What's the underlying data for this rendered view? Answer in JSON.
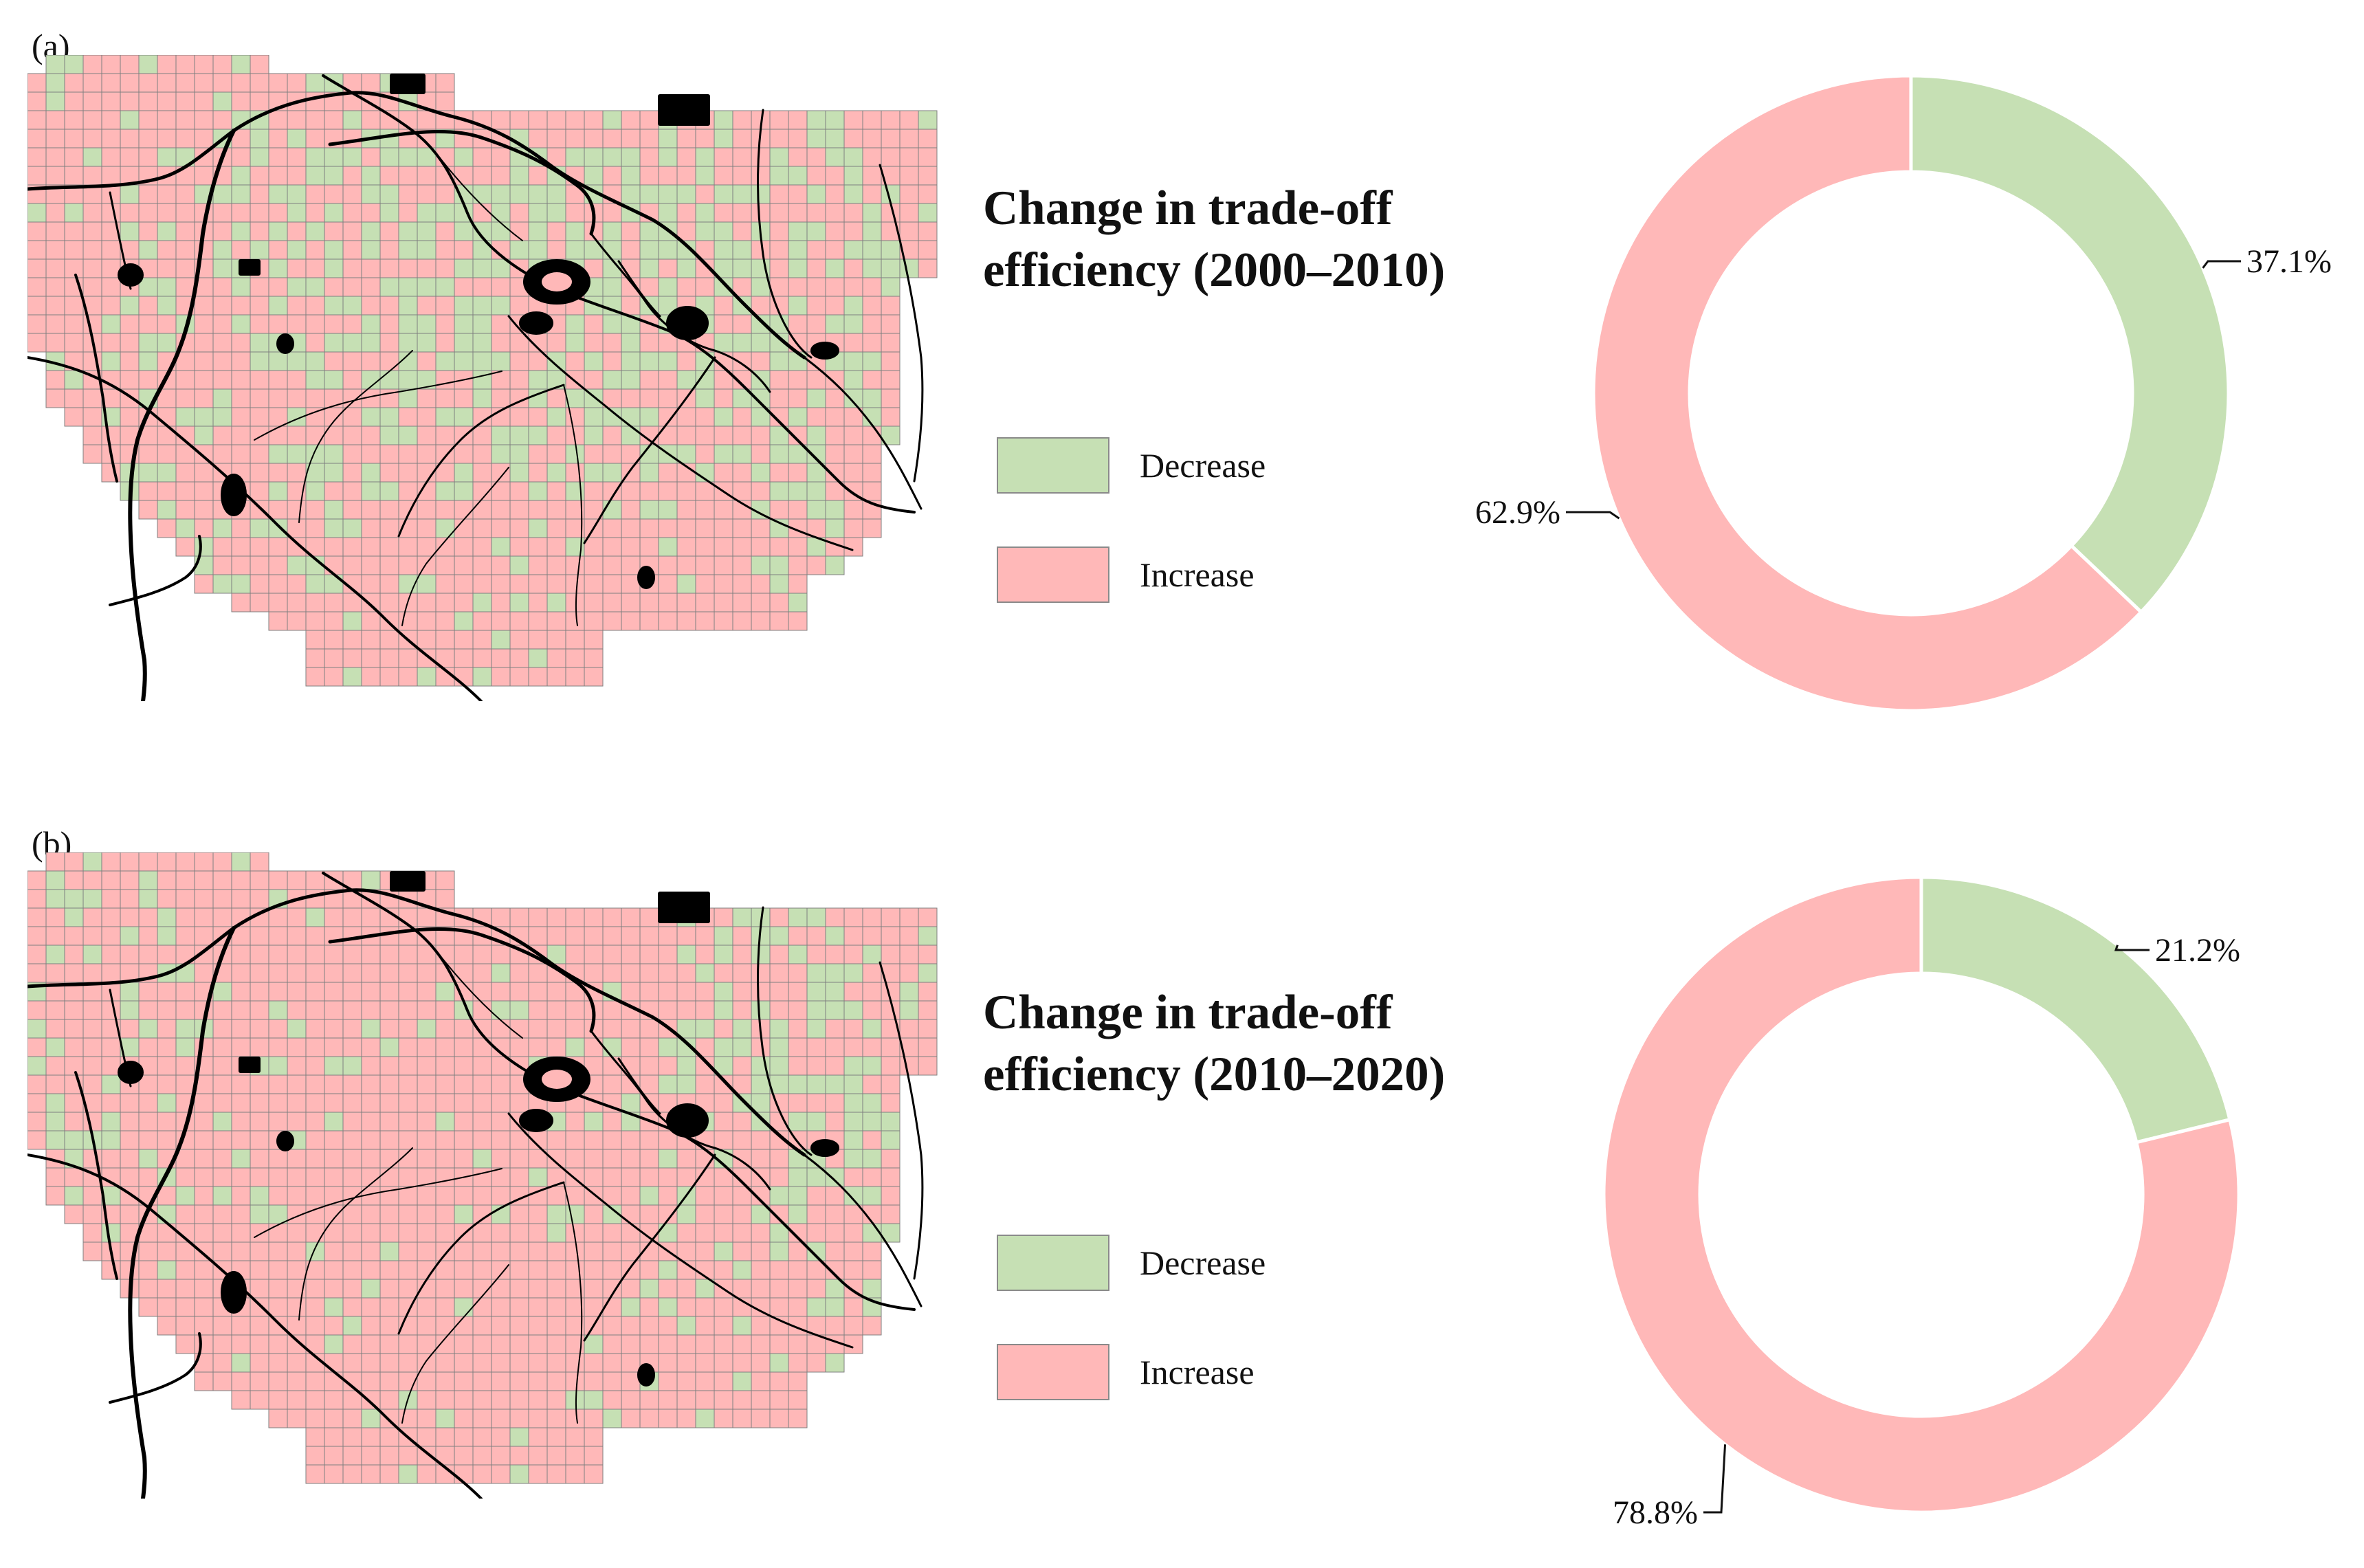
{
  "colors": {
    "decrease": "#c6e0b4",
    "increase": "#ffb8b8",
    "grid_line": "#7f7f7f",
    "water": "#000000"
  },
  "legend": {
    "decrease_label": "Decrease",
    "increase_label": "Increase"
  },
  "panels": [
    {
      "label": "(a)",
      "title_line1": "Change in trade-off",
      "title_line2": "efficiency (2000–2010)",
      "decrease_share": 37.1,
      "increase_share": 62.9,
      "decrease_label": "37.1%",
      "increase_label": "62.9%"
    },
    {
      "label": "(b)",
      "title_line1": "Change in trade-off",
      "title_line2": "efficiency (2010–2020)",
      "decrease_share": 21.2,
      "increase_share": 78.8,
      "decrease_label": "21.2%",
      "increase_label": "78.8%"
    }
  ],
  "chart_data": [
    {
      "type": "pie",
      "title": "Change in trade-off efficiency (2000–2010)",
      "categories": [
        "Decrease",
        "Increase"
      ],
      "values": [
        37.1,
        62.9
      ],
      "value_labels": [
        "37.1%",
        "62.9%"
      ]
    },
    {
      "type": "pie",
      "title": "Change in trade-off efficiency (2010–2020)",
      "categories": [
        "Decrease",
        "Increase"
      ],
      "values": [
        21.2,
        78.8
      ],
      "value_labels": [
        "21.2%",
        "78.8%"
      ]
    }
  ]
}
